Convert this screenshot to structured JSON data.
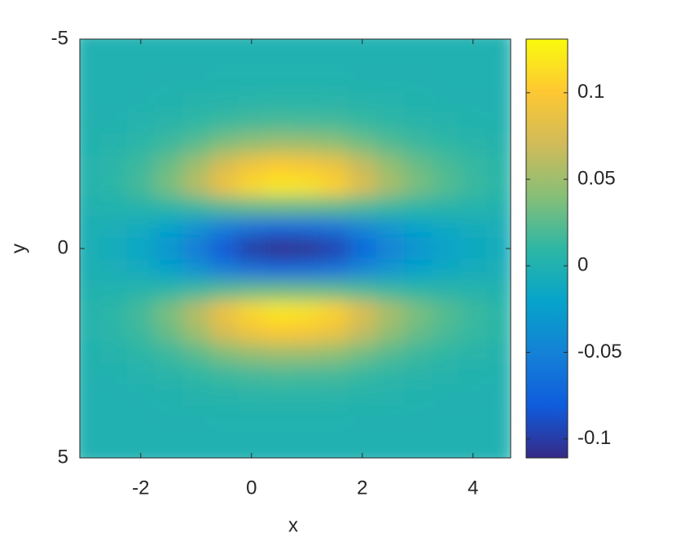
{
  "chart_data": {
    "type": "heatmap",
    "x_label": "x",
    "y_label": "y",
    "colormap": "parula",
    "x": [
      -3,
      -2.5,
      -2,
      -1.5,
      -1,
      -0.5,
      0,
      0.5,
      1,
      1.5,
      2,
      2.5,
      3,
      3.5,
      4,
      4.5
    ],
    "y": [
      -5,
      -4.5,
      -4,
      -3.5,
      -3,
      -2.5,
      -2,
      -1.5,
      -1,
      -0.5,
      0,
      0.5,
      1,
      1.5,
      2,
      2.5,
      3,
      3.5,
      4,
      4.5,
      5
    ],
    "z": [
      [
        0,
        0,
        0,
        0,
        0,
        0,
        0,
        0,
        0,
        0,
        0,
        0,
        0,
        0,
        0,
        0
      ],
      [
        0,
        0,
        0,
        0,
        0,
        0,
        0,
        0,
        0,
        0,
        0,
        0,
        0,
        0,
        0,
        0
      ],
      [
        0,
        0,
        0,
        0.001,
        0.001,
        0.002,
        0.002,
        0.002,
        0.002,
        0.002,
        0.001,
        0.001,
        0.001,
        0,
        0,
        0
      ],
      [
        0,
        0,
        0.001,
        0.002,
        0.004,
        0.005,
        0.006,
        0.007,
        0.007,
        0.006,
        0.005,
        0.003,
        0.002,
        0.001,
        0.001,
        0
      ],
      [
        0.001,
        0.001,
        0.003,
        0.006,
        0.01,
        0.015,
        0.018,
        0.02,
        0.019,
        0.018,
        0.013,
        0.009,
        0.006,
        0.004,
        0.002,
        0.001
      ],
      [
        0.002,
        0.004,
        0.008,
        0.015,
        0.025,
        0.038,
        0.046,
        0.05,
        0.049,
        0.044,
        0.033,
        0.023,
        0.015,
        0.01,
        0.006,
        0.004
      ],
      [
        0.003,
        0.007,
        0.015,
        0.03,
        0.05,
        0.075,
        0.092,
        0.1,
        0.097,
        0.088,
        0.065,
        0.045,
        0.03,
        0.02,
        0.012,
        0.007
      ],
      [
        0.004,
        0.008,
        0.018,
        0.036,
        0.06,
        0.09,
        0.11,
        0.12,
        0.116,
        0.106,
        0.078,
        0.054,
        0.036,
        0.024,
        0.014,
        0.008
      ],
      [
        0.001,
        0.002,
        0.005,
        0.009,
        0.015,
        0.023,
        0.028,
        0.03,
        0.029,
        0.026,
        0.02,
        0.014,
        0.009,
        0.006,
        0.004,
        0.002
      ],
      [
        -0.002,
        -0.005,
        -0.011,
        -0.021,
        -0.035,
        -0.053,
        -0.064,
        -0.07,
        -0.068,
        -0.062,
        -0.046,
        -0.032,
        -0.021,
        -0.014,
        -0.008,
        -0.005
      ],
      [
        -0.003,
        -0.008,
        -0.017,
        -0.033,
        -0.055,
        -0.083,
        -0.101,
        -0.11,
        -0.107,
        -0.097,
        -0.072,
        -0.05,
        -0.033,
        -0.022,
        -0.013,
        -0.008
      ],
      [
        -0.002,
        -0.005,
        -0.011,
        -0.021,
        -0.035,
        -0.053,
        -0.064,
        -0.07,
        -0.068,
        -0.062,
        -0.046,
        -0.032,
        -0.021,
        -0.014,
        -0.008,
        -0.005
      ],
      [
        0.001,
        0.002,
        0.005,
        0.009,
        0.015,
        0.023,
        0.028,
        0.03,
        0.029,
        0.026,
        0.02,
        0.014,
        0.009,
        0.006,
        0.004,
        0.002
      ],
      [
        0.004,
        0.008,
        0.018,
        0.036,
        0.06,
        0.09,
        0.11,
        0.12,
        0.116,
        0.106,
        0.078,
        0.054,
        0.036,
        0.024,
        0.014,
        0.008
      ],
      [
        0.003,
        0.007,
        0.015,
        0.03,
        0.05,
        0.075,
        0.092,
        0.1,
        0.097,
        0.088,
        0.065,
        0.045,
        0.03,
        0.02,
        0.012,
        0.007
      ],
      [
        0.002,
        0.004,
        0.008,
        0.015,
        0.025,
        0.038,
        0.046,
        0.05,
        0.049,
        0.044,
        0.033,
        0.023,
        0.015,
        0.01,
        0.006,
        0.004
      ],
      [
        0.001,
        0.001,
        0.003,
        0.006,
        0.01,
        0.015,
        0.018,
        0.02,
        0.019,
        0.018,
        0.013,
        0.009,
        0.006,
        0.004,
        0.002,
        0.001
      ],
      [
        0,
        0,
        0.001,
        0.002,
        0.004,
        0.005,
        0.006,
        0.007,
        0.007,
        0.006,
        0.005,
        0.003,
        0.002,
        0.001,
        0.001,
        0
      ],
      [
        0,
        0,
        0,
        0.001,
        0.001,
        0.002,
        0.002,
        0.002,
        0.002,
        0.002,
        0.001,
        0.001,
        0.001,
        0,
        0,
        0
      ],
      [
        0,
        0,
        0,
        0,
        0,
        0,
        0,
        0,
        0,
        0,
        0,
        0,
        0,
        0,
        0,
        0
      ],
      [
        0,
        0,
        0,
        0,
        0,
        0,
        0,
        0,
        0,
        0,
        0,
        0,
        0,
        0,
        0,
        0
      ]
    ],
    "xlim": [
      -3.1,
      4.68
    ],
    "ylim": [
      -5,
      5
    ],
    "y_reversed": true,
    "xticks": [
      -2,
      0,
      2,
      4
    ],
    "yticks": [
      -5,
      0,
      5
    ],
    "colorbar": {
      "clim": [
        -0.111,
        0.131
      ],
      "ticks": [
        -0.1,
        -0.05,
        0,
        0.05,
        0.1
      ]
    }
  }
}
